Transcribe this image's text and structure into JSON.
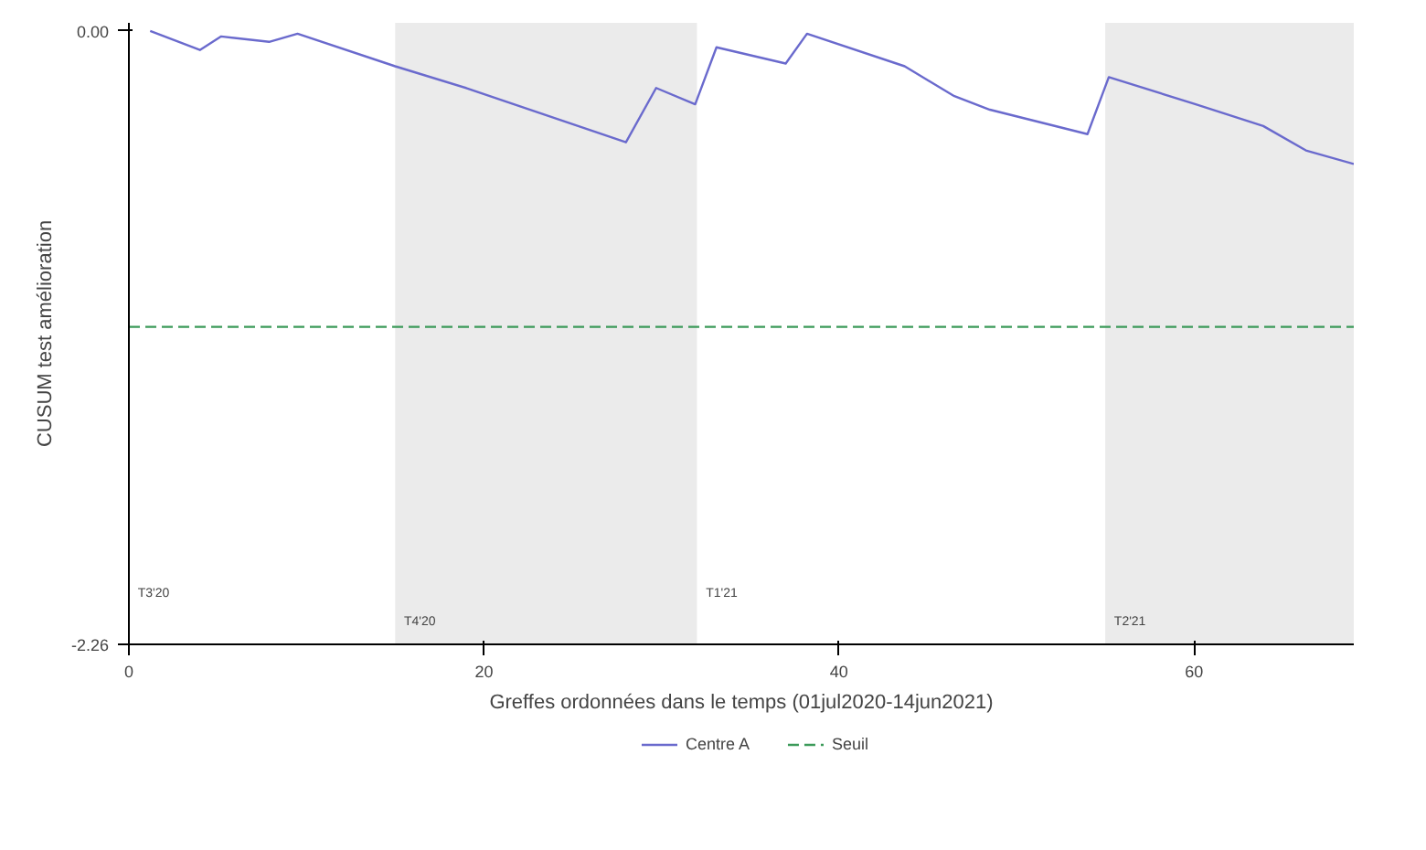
{
  "chart_data": {
    "type": "line",
    "xlabel": "Greffes ordonnées dans le temps (01jul2020-14jun2021)",
    "ylabel": "CUSUM test amélioration",
    "xlim": [
      0,
      69
    ],
    "ylim": [
      -2.26,
      0.03
    ],
    "xticks": [
      0,
      20,
      40,
      60
    ],
    "yticks": [
      {
        "value": 0,
        "label": "0.00"
      },
      {
        "value": -2.26,
        "label": "-2.26"
      }
    ],
    "grid": false,
    "legend": "bottom",
    "marker": "none",
    "series": [
      {
        "name": "Centre A",
        "color": "#6a6acd",
        "line_style": "solid",
        "x": [
          1.2,
          4,
          5.2,
          7.9,
          9.5,
          15,
          19,
          28,
          29.7,
          31.9,
          33.1,
          37,
          38.2,
          43.7,
          46.5,
          48.5,
          54,
          55.2,
          60.1,
          63.9,
          66.3,
          69
        ],
        "values": [
          0,
          -0.07,
          -0.02,
          -0.04,
          -0.01,
          -0.13,
          -0.21,
          -0.41,
          -0.21,
          -0.27,
          -0.06,
          -0.12,
          -0.01,
          -0.13,
          -0.24,
          -0.29,
          -0.38,
          -0.17,
          -0.27,
          -0.35,
          -0.44,
          -0.49
        ]
      },
      {
        "name": "Seuil",
        "color": "#3c9a5a",
        "line_style": "dashed",
        "x": [
          0,
          69
        ],
        "values": [
          -1.09,
          -1.09
        ]
      }
    ],
    "bands": [
      {
        "axis": "x",
        "from": 15,
        "to": 32,
        "label": "T4'20",
        "color": "#ebebeb"
      },
      {
        "axis": "x",
        "from": 55,
        "to": 69,
        "label": "T2'21",
        "color": "#ebebeb"
      }
    ],
    "annotations": [
      "T3'20",
      "T1'21"
    ]
  }
}
